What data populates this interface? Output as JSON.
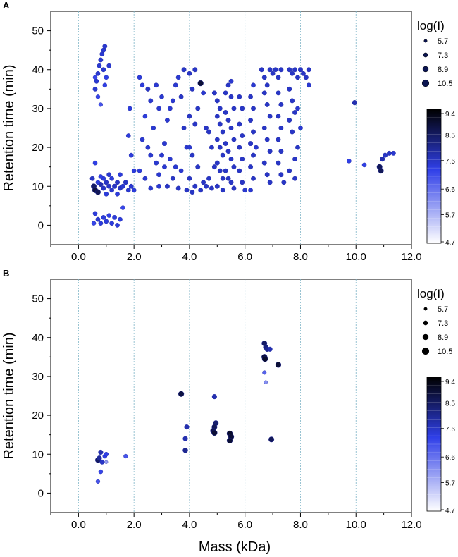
{
  "chart_data": [
    {
      "panel_label": "A",
      "type": "scatter",
      "xlabel": "",
      "ylabel": "Retention time (min)",
      "xlim": [
        -1,
        12
      ],
      "ylim": [
        -5,
        55
      ],
      "x_ticks": [
        0,
        2,
        4,
        6,
        8,
        10,
        12
      ],
      "x_tick_labels": [
        "0.0",
        "2.0",
        "4.0",
        "6.0",
        "8.0",
        "10.0",
        "12.0"
      ],
      "y_ticks": [
        0,
        10,
        20,
        30,
        40,
        50
      ],
      "y_tick_labels": [
        "0",
        "10",
        "20",
        "30",
        "40",
        "50"
      ],
      "grid": "vertical dashed at x ticks",
      "size_legend": {
        "title": "log(I)",
        "values": [
          5.7,
          7.3,
          8.9,
          10.5
        ],
        "labels": [
          "5.7",
          "7.3",
          "8.9",
          "10.5"
        ]
      },
      "colorbar": {
        "min": 4.7,
        "max": 9.4,
        "tick_values": [
          9.4,
          8.5,
          7.6,
          6.6,
          5.7,
          4.7
        ],
        "tick_labels": [
          "9.4",
          "8.5",
          "7.6",
          "6.6",
          "5.7",
          "4.7"
        ],
        "colors": [
          "#ffffff",
          "#2f3fe8",
          "#000000"
        ]
      },
      "points": [
        [
          0.6,
          35,
          7.5
        ],
        [
          0.65,
          37,
          7.5
        ],
        [
          0.7,
          39,
          7.5
        ],
        [
          0.75,
          41,
          7.5
        ],
        [
          0.8,
          42.5,
          7.5
        ],
        [
          0.85,
          44,
          7.5
        ],
        [
          0.9,
          45,
          7.5
        ],
        [
          0.95,
          46,
          7.5
        ],
        [
          0.7,
          33,
          7.2
        ],
        [
          0.8,
          31,
          7
        ],
        [
          0.6,
          38,
          7.2
        ],
        [
          0.9,
          40,
          7.5
        ],
        [
          1.0,
          38,
          7.3
        ],
        [
          1.1,
          41,
          7.5
        ],
        [
          0.95,
          36,
          7.3
        ],
        [
          0.5,
          12,
          7.6
        ],
        [
          0.55,
          10,
          8.5
        ],
        [
          0.6,
          9,
          8.8
        ],
        [
          0.7,
          8.5,
          8.6
        ],
        [
          0.8,
          10.5,
          7.8
        ],
        [
          0.9,
          9.5,
          7.6
        ],
        [
          1.0,
          11,
          7.6
        ],
        [
          1.1,
          10,
          7.6
        ],
        [
          1.2,
          9,
          7.5
        ],
        [
          1.3,
          10,
          7.6
        ],
        [
          1.4,
          11,
          7.6
        ],
        [
          1.5,
          9.5,
          7.6
        ],
        [
          1.6,
          10,
          7.5
        ],
        [
          1.7,
          11,
          7.6
        ],
        [
          1.8,
          9,
          7.5
        ],
        [
          1.9,
          10,
          7.5
        ],
        [
          2.0,
          9,
          7.4
        ],
        [
          0.7,
          11,
          7.4
        ],
        [
          0.9,
          12,
          7.4
        ],
        [
          1.1,
          13,
          7.5
        ],
        [
          0.6,
          16,
          7.3
        ],
        [
          0.8,
          12.5,
          7.3
        ],
        [
          1.2,
          12,
          7.4
        ],
        [
          1.5,
          13,
          7.4
        ],
        [
          1.0,
          8,
          7.4
        ],
        [
          1.4,
          8,
          7.4
        ],
        [
          0.6,
          3,
          7.4
        ],
        [
          0.7,
          1.5,
          7.5
        ],
        [
          0.8,
          0.5,
          7.4
        ],
        [
          0.9,
          2,
          7.4
        ],
        [
          1.0,
          1,
          7.4
        ],
        [
          1.2,
          0.5,
          7.4
        ],
        [
          1.3,
          2,
          7.4
        ],
        [
          1.4,
          0,
          7.4
        ],
        [
          1.5,
          1.5,
          7.4
        ],
        [
          0.55,
          0.5,
          7.2
        ],
        [
          1.6,
          4.5,
          7.2
        ],
        [
          1.1,
          2.5,
          7.3
        ],
        [
          2.2,
          38,
          7.4
        ],
        [
          2.3,
          36,
          7.4
        ],
        [
          2.5,
          35,
          7.6
        ],
        [
          2.8,
          36,
          7.5
        ],
        [
          2.6,
          32,
          7.5
        ],
        [
          2.9,
          30,
          7.5
        ],
        [
          3.0,
          33,
          7.5
        ],
        [
          2.4,
          28,
          7.4
        ],
        [
          2.7,
          25,
          7.5
        ],
        [
          2.3,
          22,
          7.5
        ],
        [
          2.5,
          20,
          7.5
        ],
        [
          2.6,
          18,
          7.5
        ],
        [
          2.8,
          16,
          7.5
        ],
        [
          2.2,
          14,
          7.4
        ],
        [
          2.4,
          12,
          7.5
        ],
        [
          2.9,
          13,
          7.5
        ],
        [
          3.1,
          21,
          7.5
        ],
        [
          3.2,
          27,
          7.5
        ],
        [
          3.3,
          30,
          7.5
        ],
        [
          3.4,
          32,
          7.5
        ],
        [
          3.5,
          36,
          7.5
        ],
        [
          3.6,
          38,
          7.5
        ],
        [
          3.7,
          33,
          7.6
        ],
        [
          3.8,
          25,
          7.6
        ],
        [
          3.9,
          20,
          7.5
        ],
        [
          3.3,
          17,
          7.5
        ],
        [
          3.5,
          15,
          7.5
        ],
        [
          3.7,
          14,
          7.5
        ],
        [
          3.4,
          12,
          7.6
        ],
        [
          3.6,
          9.5,
          7.6
        ],
        [
          3.2,
          10,
          7.6
        ],
        [
          2.6,
          9.5,
          7.5
        ],
        [
          2.9,
          10,
          7.5
        ],
        [
          3.0,
          18,
          7.5
        ],
        [
          3.1,
          15,
          7.5
        ],
        [
          1.8,
          23,
          7.4
        ],
        [
          1.9,
          18,
          7.4
        ],
        [
          1.85,
          30,
          7.4
        ],
        [
          2.0,
          14,
          7.4
        ],
        [
          3.8,
          40,
          7.6
        ],
        [
          4.0,
          39,
          7.6
        ],
        [
          4.2,
          40,
          7.6
        ],
        [
          4.1,
          35,
          7.6
        ],
        [
          4.3,
          30,
          7.6
        ],
        [
          4.0,
          28,
          7.6
        ],
        [
          4.2,
          26,
          7.6
        ],
        [
          4.4,
          36.5,
          8.9
        ],
        [
          4.5,
          34,
          7.5
        ],
        [
          4.6,
          25,
          7.6
        ],
        [
          4.7,
          24,
          7.6
        ],
        [
          4.8,
          20,
          7.6
        ],
        [
          4.9,
          15,
          7.6
        ],
        [
          4.0,
          20,
          7.5
        ],
        [
          4.1,
          18,
          7.6
        ],
        [
          4.3,
          15,
          7.6
        ],
        [
          4.0,
          12,
          7.6
        ],
        [
          4.2,
          10,
          7.6
        ],
        [
          4.4,
          9,
          7.6
        ],
        [
          4.6,
          10,
          7.6
        ],
        [
          4.8,
          9.5,
          7.6
        ],
        [
          5.0,
          10,
          7.6
        ],
        [
          5.2,
          9,
          7.6
        ],
        [
          4.1,
          8.5,
          7.6
        ],
        [
          4.5,
          11,
          7.6
        ],
        [
          4.7,
          12,
          7.6
        ],
        [
          3.9,
          9,
          7.6
        ],
        [
          4.9,
          34,
          7.6
        ],
        [
          5.0,
          32,
          7.6
        ],
        [
          5.1,
          30,
          7.6
        ],
        [
          5.0,
          28,
          7.6
        ],
        [
          5.1,
          26,
          7.6
        ],
        [
          5.2,
          24,
          7.6
        ],
        [
          5.0,
          22,
          7.6
        ],
        [
          5.1,
          20,
          7.6
        ],
        [
          5.2,
          18,
          7.6
        ],
        [
          5.0,
          16,
          7.6
        ],
        [
          5.1,
          14,
          7.6
        ],
        [
          5.2,
          12,
          7.6
        ],
        [
          5.3,
          34,
          7.6
        ],
        [
          5.4,
          36,
          7.6
        ],
        [
          5.5,
          33,
          7.6
        ],
        [
          5.6,
          30,
          7.6
        ],
        [
          5.3,
          29,
          7.6
        ],
        [
          5.4,
          27,
          7.6
        ],
        [
          5.5,
          25,
          7.6
        ],
        [
          5.6,
          22,
          7.6
        ],
        [
          5.3,
          21,
          7.6
        ],
        [
          5.4,
          19,
          7.6
        ],
        [
          5.5,
          17,
          7.6
        ],
        [
          5.6,
          15,
          7.6
        ],
        [
          5.3,
          14,
          7.6
        ],
        [
          5.4,
          12,
          7.6
        ],
        [
          5.5,
          11,
          7.6
        ],
        [
          5.6,
          9.5,
          7.6
        ],
        [
          5.8,
          33,
          7.6
        ],
        [
          5.9,
          30,
          7.6
        ],
        [
          5.8,
          26,
          7.6
        ],
        [
          5.9,
          23,
          7.6
        ],
        [
          5.8,
          20,
          7.6
        ],
        [
          5.9,
          17,
          7.6
        ],
        [
          5.8,
          14,
          7.6
        ],
        [
          5.9,
          11,
          7.6
        ],
        [
          5.5,
          37,
          7.5
        ],
        [
          6.0,
          9,
          7.5
        ],
        [
          6.2,
          33,
          7.6
        ],
        [
          6.3,
          30,
          7.6
        ],
        [
          6.2,
          27,
          7.6
        ],
        [
          6.3,
          24,
          7.6
        ],
        [
          6.2,
          21,
          7.6
        ],
        [
          6.3,
          18,
          7.6
        ],
        [
          6.2,
          15,
          7.6
        ],
        [
          6.3,
          12,
          7.6
        ],
        [
          6.3,
          36,
          7.5
        ],
        [
          6.2,
          9,
          7.5
        ],
        [
          6.4,
          20,
          7.5
        ],
        [
          6.6,
          40,
          7.6
        ],
        [
          6.7,
          38,
          7.6
        ],
        [
          6.8,
          36,
          7.6
        ],
        [
          6.9,
          40,
          7.6
        ],
        [
          7.0,
          39,
          7.6
        ],
        [
          7.1,
          40,
          7.6
        ],
        [
          7.2,
          38,
          7.6
        ],
        [
          7.3,
          40,
          7.6
        ],
        [
          6.7,
          34,
          7.6
        ],
        [
          6.8,
          31,
          7.6
        ],
        [
          6.9,
          28,
          7.6
        ],
        [
          6.7,
          25,
          7.6
        ],
        [
          6.8,
          22,
          7.6
        ],
        [
          6.9,
          19,
          7.6
        ],
        [
          6.7,
          16,
          7.6
        ],
        [
          6.8,
          13,
          7.6
        ],
        [
          6.9,
          11,
          7.6
        ],
        [
          7.2,
          34,
          7.6
        ],
        [
          7.3,
          31,
          7.6
        ],
        [
          7.2,
          28,
          7.6
        ],
        [
          7.3,
          25,
          7.6
        ],
        [
          7.2,
          22,
          7.6
        ],
        [
          7.3,
          19,
          7.6
        ],
        [
          7.2,
          16,
          7.6
        ],
        [
          7.3,
          13,
          7.6
        ],
        [
          7.4,
          11,
          7.6
        ],
        [
          7.6,
          40,
          7.6
        ],
        [
          7.7,
          39,
          7.6
        ],
        [
          7.8,
          40,
          7.6
        ],
        [
          7.9,
          38,
          7.6
        ],
        [
          8.0,
          40,
          7.6
        ],
        [
          8.1,
          39,
          7.6
        ],
        [
          8.3,
          40,
          7.6
        ],
        [
          8.2,
          38,
          7.6
        ],
        [
          8.3,
          36,
          7.5
        ],
        [
          7.6,
          35,
          7.6
        ],
        [
          7.7,
          32,
          7.6
        ],
        [
          7.8,
          29,
          7.6
        ],
        [
          7.6,
          27,
          7.6
        ],
        [
          7.7,
          24,
          7.6
        ],
        [
          7.9,
          20,
          7.6
        ],
        [
          7.8,
          17,
          7.6
        ],
        [
          7.6,
          14,
          7.6
        ],
        [
          7.8,
          12,
          7.6
        ],
        [
          8.0,
          25,
          7.5
        ],
        [
          7.9,
          30,
          7.5
        ],
        [
          9.95,
          31.5,
          7.8
        ],
        [
          9.75,
          16.5,
          7.3
        ],
        [
          10.3,
          15.5,
          7.3
        ],
        [
          10.85,
          15,
          8.6
        ],
        [
          10.9,
          14,
          8.6
        ],
        [
          10.95,
          17,
          7.8
        ],
        [
          11.05,
          18,
          7.6
        ],
        [
          11.2,
          18.5,
          7.6
        ],
        [
          11.35,
          18.5,
          7.5
        ]
      ]
    },
    {
      "panel_label": "B",
      "type": "scatter",
      "xlabel": "Mass (kDa)",
      "ylabel": "Retention time (min)",
      "xlim": [
        -1,
        12
      ],
      "ylim": [
        -5,
        55
      ],
      "x_ticks": [
        0,
        2,
        4,
        6,
        8,
        10,
        12
      ],
      "x_tick_labels": [
        "0.0",
        "2.0",
        "4.0",
        "6.0",
        "8.0",
        "10.0",
        "12.0"
      ],
      "y_ticks": [
        0,
        10,
        20,
        30,
        40,
        50
      ],
      "y_tick_labels": [
        "0",
        "10",
        "20",
        "30",
        "40",
        "50"
      ],
      "grid": "vertical dashed at x ticks",
      "size_legend": {
        "title": "log(I)",
        "values": [
          5.7,
          7.3,
          8.9,
          10.5
        ],
        "labels": [
          "5.7",
          "7.3",
          "8.9",
          "10.5"
        ]
      },
      "colorbar": {
        "min": 4.7,
        "max": 9.4,
        "tick_values": [
          9.4,
          8.5,
          7.6,
          6.6,
          5.7,
          4.7
        ],
        "tick_labels": [
          "9.4",
          "8.5",
          "7.6",
          "6.6",
          "5.7",
          "4.7"
        ],
        "colors": [
          "#ffffff",
          "#2f3fe8",
          "#000000"
        ]
      },
      "points": [
        [
          0.7,
          8.5,
          8.5
        ],
        [
          0.75,
          9,
          8.0
        ],
        [
          0.8,
          10.5,
          7.8
        ],
        [
          0.85,
          8,
          7.6
        ],
        [
          0.8,
          5.5,
          7.2
        ],
        [
          0.7,
          3,
          7.0
        ],
        [
          0.95,
          9.5,
          7.3
        ],
        [
          1.0,
          10,
          7.3
        ],
        [
          1.0,
          8,
          6.0
        ],
        [
          1.7,
          9.5,
          7.0
        ],
        [
          3.7,
          25.5,
          8.8
        ],
        [
          3.9,
          17,
          7.8
        ],
        [
          3.85,
          14,
          7.8
        ],
        [
          3.85,
          11,
          8.1
        ],
        [
          4.9,
          24.8,
          7.8
        ],
        [
          4.95,
          18,
          8.4
        ],
        [
          4.9,
          17,
          8.6
        ],
        [
          4.85,
          16,
          8.7
        ],
        [
          4.9,
          15.5,
          8.9
        ],
        [
          5.45,
          15.3,
          9.0
        ],
        [
          5.5,
          14.5,
          8.9
        ],
        [
          5.45,
          13.5,
          8.9
        ],
        [
          6.7,
          38.5,
          8.5
        ],
        [
          6.75,
          37.5,
          8.3
        ],
        [
          6.7,
          35,
          8.9
        ],
        [
          6.72,
          34.5,
          9.0
        ],
        [
          6.8,
          37,
          8.1
        ],
        [
          6.9,
          37,
          7.8
        ],
        [
          6.7,
          31,
          6.8
        ],
        [
          6.75,
          28.5,
          6.2
        ],
        [
          7.2,
          33,
          8.9
        ],
        [
          6.95,
          13.8,
          8.6
        ]
      ]
    }
  ]
}
